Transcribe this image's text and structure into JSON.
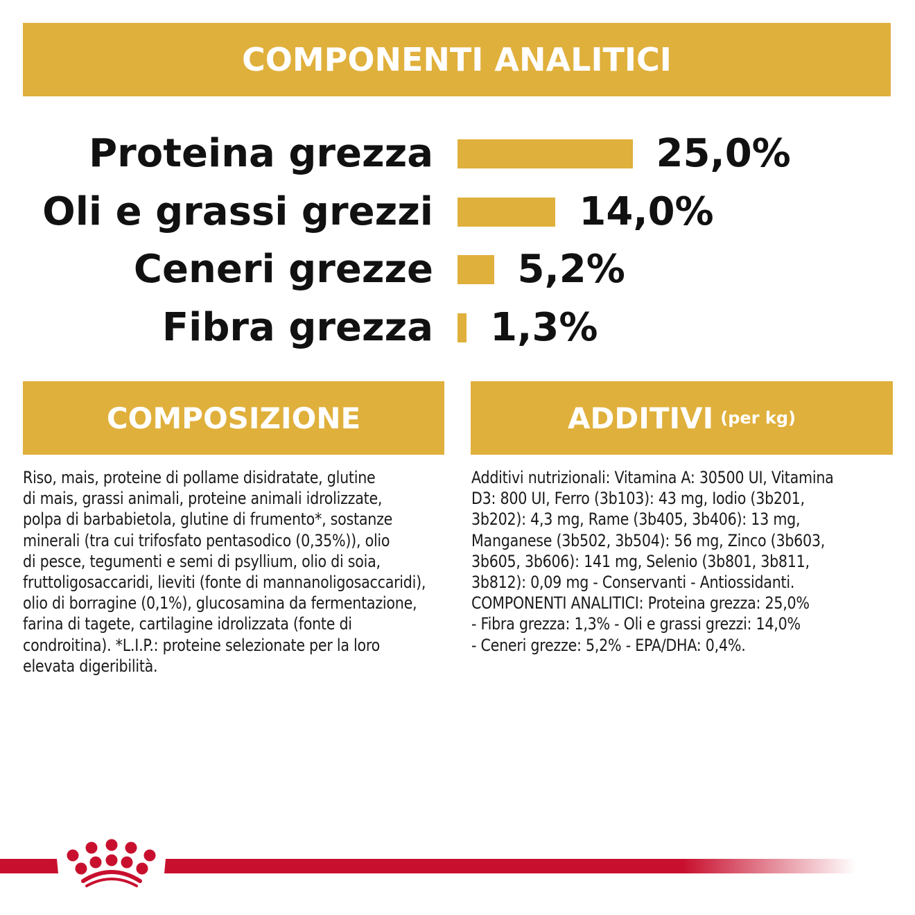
{
  "header": {
    "title": "COMPONENTI ANALITICI"
  },
  "analytics": {
    "rows": [
      {
        "label": "Proteina grezza",
        "value_text": "25,0%",
        "value": 25.0
      },
      {
        "label": "Oli e grassi grezzi",
        "value_text": "14,0%",
        "value": 14.0
      },
      {
        "label": "Ceneri grezze",
        "value_text": "5,2%",
        "value": 5.2
      },
      {
        "label": "Fibra grezza",
        "value_text": "1,3%",
        "value": 1.3
      }
    ],
    "bar_color": "#e0b03c"
  },
  "composizione": {
    "title": "COMPOSIZIONE",
    "lines": [
      "Riso, mais, proteine di pollame disidratate, glutine",
      "di mais, grassi animali, proteine animali idrolizzate,",
      "polpa di barbabietola, glutine di frumento*, sostanze",
      "minerali (tra cui trifosfato pentasodico (0,35%)), olio",
      "di pesce, tegumenti e semi di psyllium, olio di soia,",
      "fruttoligosaccaridi, lieviti (fonte di mannanoligosaccaridi),",
      "olio di borragine (0,1%), glucosamina da fermentazione,",
      "farina di tagete, cartilagine idrolizzata (fonte di",
      "condroitina). *L.I.P.: proteine selezionate per la loro",
      "elevata digeribilità."
    ]
  },
  "additivi": {
    "title": "ADDITIVI",
    "subtitle": "(per kg)",
    "lines": [
      "Additivi nutrizionali: Vitamina A: 30500 UI, Vitamina",
      "D3: 800 UI, Ferro (3b103): 43 mg, Iodio (3b201,",
      "3b202): 4,3 mg, Rame (3b405, 3b406): 13 mg,",
      "Manganese (3b502, 3b504): 56 mg, Zinco (3b603,",
      "3b605, 3b606): 141 mg, Selenio (3b801, 3b811,",
      "3b812): 0,09 mg - Conservanti - Antiossidanti.",
      "COMPONENTI ANALITICI: Proteina grezza: 25,0%",
      "- Fibra grezza: 1,3% - Oli e grassi grezzi: 14,0%",
      "- Ceneri grezze: 5,2% - EPA/DHA: 0,4%."
    ]
  },
  "colors": {
    "accent": "#e0b03c",
    "brand_red": "#c8102e"
  },
  "logo": {
    "icon": "crown-icon"
  }
}
